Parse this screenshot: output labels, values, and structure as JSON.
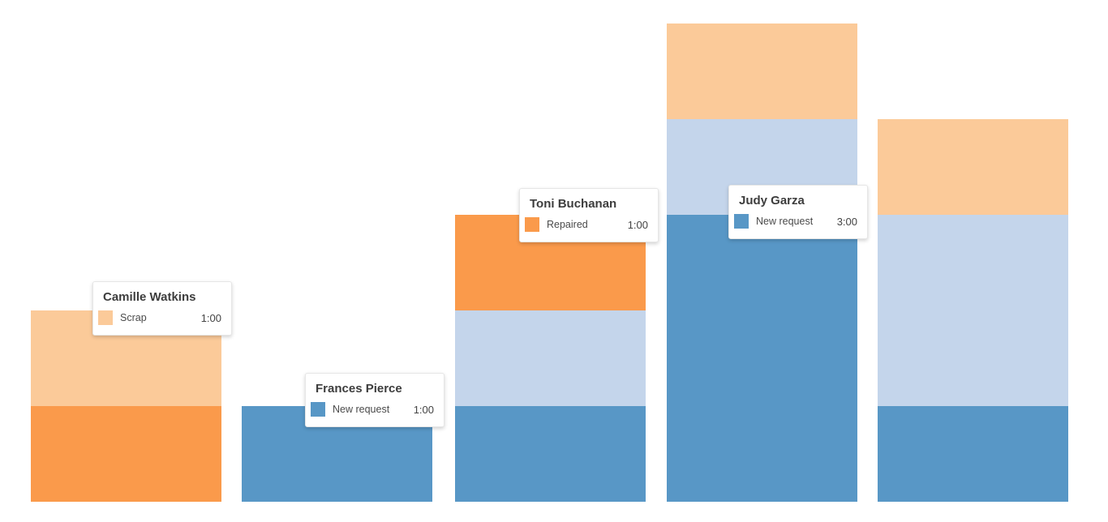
{
  "chart_data": {
    "type": "bar",
    "stacked": true,
    "orientation": "vertical",
    "background": "#ffffff",
    "axes_visible": false,
    "grid": false,
    "unit": "hours",
    "palette": {
      "new_request": "#5897C6",
      "repaired": "#FA9A4B",
      "scrap": "#FBCA99",
      "unlabeled": "#C4D5EB"
    },
    "series_legend": [
      {
        "key": "new_request",
        "label": "New request",
        "color": "#5897C6"
      },
      {
        "key": "repaired",
        "label": "Repaired",
        "color": "#FA9A4B"
      },
      {
        "key": "scrap",
        "label": "Scrap",
        "color": "#FBCA99"
      },
      {
        "key": "unlabeled",
        "label": "",
        "color": "#C4D5EB"
      }
    ],
    "bars": [
      {
        "person": "Camille Watkins",
        "segments": [
          {
            "series_key": "scrap",
            "label": "Scrap",
            "duration": "1:00",
            "hours": 1
          },
          {
            "series_key": "repaired",
            "label": "Repaired",
            "duration": "1:00",
            "hours": 1
          }
        ]
      },
      {
        "person": "Frances Pierce",
        "segments": [
          {
            "series_key": "new_request",
            "label": "New request",
            "duration": "1:00",
            "hours": 1
          }
        ]
      },
      {
        "person": "Toni Buchanan",
        "segments": [
          {
            "series_key": "repaired",
            "label": "Repaired",
            "duration": "1:00",
            "hours": 1
          },
          {
            "series_key": "unlabeled",
            "label": "",
            "duration": "1:00",
            "hours": 1
          },
          {
            "series_key": "new_request",
            "label": "New request",
            "duration": "1:00",
            "hours": 1
          }
        ]
      },
      {
        "person": "Judy Garza",
        "segments": [
          {
            "series_key": "scrap",
            "label": "Scrap",
            "duration": "1:00",
            "hours": 1
          },
          {
            "series_key": "unlabeled",
            "label": "",
            "duration": "1:00",
            "hours": 1
          },
          {
            "series_key": "new_request",
            "label": "New request",
            "duration": "3:00",
            "hours": 3
          }
        ]
      },
      {
        "person": "",
        "segments": [
          {
            "series_key": "scrap",
            "label": "Scrap",
            "duration": "1:00",
            "hours": 1
          },
          {
            "series_key": "unlabeled",
            "label": "",
            "duration": "2:00",
            "hours": 2
          },
          {
            "series_key": "new_request",
            "label": "New request",
            "duration": "1:00",
            "hours": 1
          }
        ]
      }
    ],
    "tooltips": [
      {
        "bar_index": 0,
        "title": "Camille Watkins",
        "series_key": "scrap",
        "label": "Scrap",
        "value": "1:00"
      },
      {
        "bar_index": 1,
        "title": "Frances Pierce",
        "series_key": "new_request",
        "label": "New request",
        "value": "1:00"
      },
      {
        "bar_index": 2,
        "title": "Toni Buchanan",
        "series_key": "repaired",
        "label": "Repaired",
        "value": "1:00"
      },
      {
        "bar_index": 3,
        "title": "Judy Garza",
        "series_key": "new_request",
        "label": "New request",
        "value": "3:00"
      }
    ]
  }
}
